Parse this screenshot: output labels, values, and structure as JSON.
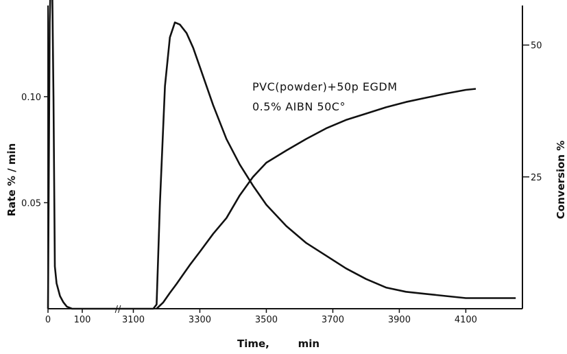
{
  "chart_data": {
    "type": "line",
    "title": "",
    "annotations": [
      "PVC(powder)+50p EGDM",
      "0.5% AIBN 50C°"
    ],
    "xlabel": "Time,        min",
    "ylabel_left": "Rate % / min",
    "ylabel_right": "Conversion %",
    "x_ticks": [
      "0",
      "100",
      "3100",
      "3300",
      "3500",
      "3700",
      "3900",
      "4100"
    ],
    "x_break_symbol": "//",
    "y_left_ticks": [
      "0.05",
      "0.10"
    ],
    "y_left_tick_values": [
      0.05,
      0.1
    ],
    "y_left_range": [
      0,
      0.143
    ],
    "y_right_ticks": [
      "25",
      "50"
    ],
    "y_right_tick_values": [
      25,
      50
    ],
    "y_right_range": [
      0,
      57.5
    ],
    "x_axis_segments": [
      {
        "data_range": [
          0,
          130
        ]
      },
      {
        "data_range": [
          3000,
          4260
        ]
      }
    ],
    "grid": false,
    "legend": "none",
    "series": [
      {
        "axis": "left",
        "points": [
          [
            0,
            0.0
          ],
          [
            5,
            0.135
          ],
          [
            8,
            0.157
          ],
          [
            12,
            0.157
          ],
          [
            16,
            0.1
          ],
          [
            20,
            0.02
          ],
          [
            25,
            0.012
          ],
          [
            35,
            0.006
          ],
          [
            45,
            0.003
          ],
          [
            55,
            0.001
          ],
          [
            70,
            0.0
          ],
          [
            100,
            0.0
          ],
          [
            130,
            0.0
          ],
          [
            3000,
            0.0
          ],
          [
            3160,
            0.0
          ],
          [
            3170,
            0.002
          ],
          [
            3180,
            0.05
          ],
          [
            3195,
            0.105
          ],
          [
            3210,
            0.128
          ],
          [
            3225,
            0.135
          ],
          [
            3240,
            0.134
          ],
          [
            3260,
            0.13
          ],
          [
            3280,
            0.123
          ],
          [
            3300,
            0.114
          ],
          [
            3340,
            0.096
          ],
          [
            3380,
            0.08
          ],
          [
            3420,
            0.068
          ],
          [
            3460,
            0.058
          ],
          [
            3500,
            0.049
          ],
          [
            3560,
            0.039
          ],
          [
            3620,
            0.031
          ],
          [
            3680,
            0.025
          ],
          [
            3740,
            0.019
          ],
          [
            3800,
            0.014
          ],
          [
            3860,
            0.01
          ],
          [
            3920,
            0.008
          ],
          [
            3980,
            0.007
          ],
          [
            4040,
            0.006
          ],
          [
            4100,
            0.005
          ],
          [
            4180,
            0.005
          ],
          [
            4250,
            0.005
          ]
        ]
      },
      {
        "axis": "right",
        "points": [
          [
            3170,
            0.0
          ],
          [
            3190,
            1.2
          ],
          [
            3210,
            3.0
          ],
          [
            3230,
            4.7
          ],
          [
            3250,
            6.5
          ],
          [
            3270,
            8.3
          ],
          [
            3300,
            10.8
          ],
          [
            3340,
            14.2
          ],
          [
            3380,
            17.2
          ],
          [
            3420,
            21.5
          ],
          [
            3460,
            25.0
          ],
          [
            3500,
            27.7
          ],
          [
            3560,
            30.0
          ],
          [
            3620,
            32.2
          ],
          [
            3680,
            34.2
          ],
          [
            3740,
            35.8
          ],
          [
            3800,
            37.0
          ],
          [
            3860,
            38.2
          ],
          [
            3920,
            39.2
          ],
          [
            3980,
            40.0
          ],
          [
            4040,
            40.8
          ],
          [
            4100,
            41.5
          ],
          [
            4130,
            41.7
          ]
        ]
      }
    ]
  }
}
